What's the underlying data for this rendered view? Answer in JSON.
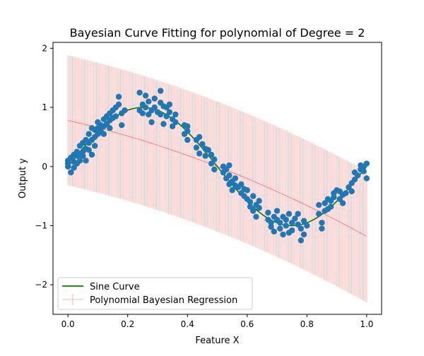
{
  "chart_data": {
    "type": "scatter",
    "title": "Bayesian Curve Fitting for polynomial of Degree = 2",
    "xlabel": "Feature X",
    "ylabel": "Output y",
    "xlim": [
      -0.05,
      1.05
    ],
    "ylim": [
      -2.5,
      2.1
    ],
    "x_ticks": [
      0.0,
      0.2,
      0.4,
      0.6,
      0.8,
      1.0
    ],
    "x_tick_labels": [
      "0.0",
      "0.2",
      "0.4",
      "0.6",
      "0.8",
      "1.0"
    ],
    "y_ticks": [
      -2,
      -1,
      0,
      1,
      2
    ],
    "y_tick_labels": [
      "−2",
      "−1",
      "0",
      "1",
      "2"
    ],
    "grid": false,
    "legend_position": "lower left",
    "legend": [
      "Sine Curve",
      "Polynomial Bayesian Regression"
    ],
    "colors": {
      "points": "#1f77b4",
      "sine": "#008000",
      "regression": "#ff0000",
      "errorbar": "#ffb6b6"
    },
    "sine_curve": {
      "name": "Sine Curve",
      "function": "sin(2*pi*x)",
      "x_range": [
        0,
        1
      ]
    },
    "regression": {
      "name": "Polynomial Bayesian Regression",
      "degree": 2,
      "x_range": [
        0,
        1
      ],
      "mean": {
        "x": [
          0.0,
          0.5,
          1.0
        ],
        "y": [
          0.78,
          0.0,
          -1.18
        ]
      },
      "upper": {
        "x": [
          0.0,
          0.5,
          1.0
        ],
        "y": [
          1.88,
          1.1,
          -0.08
        ]
      },
      "lower": {
        "x": [
          0.0,
          0.5,
          1.0
        ],
        "y": [
          -0.32,
          -1.1,
          -2.3
        ]
      }
    },
    "scatter": {
      "name": "data points",
      "points": [
        [
          0.0,
          0.0
        ],
        [
          0.0,
          0.05
        ],
        [
          0.0,
          0.1
        ],
        [
          0.01,
          -0.1
        ],
        [
          0.01,
          0.15
        ],
        [
          0.02,
          0.08
        ],
        [
          0.02,
          0.2
        ],
        [
          0.02,
          -0.02
        ],
        [
          0.03,
          0.18
        ],
        [
          0.03,
          0.25
        ],
        [
          0.03,
          0.05
        ],
        [
          0.04,
          0.2
        ],
        [
          0.04,
          0.1
        ],
        [
          0.04,
          0.35
        ],
        [
          0.05,
          0.25
        ],
        [
          0.05,
          0.4
        ],
        [
          0.05,
          0.18
        ],
        [
          0.06,
          0.3
        ],
        [
          0.06,
          0.45
        ],
        [
          0.06,
          0.1
        ],
        [
          0.07,
          0.55
        ],
        [
          0.07,
          0.4
        ],
        [
          0.07,
          0.28
        ],
        [
          0.08,
          0.65
        ],
        [
          0.08,
          0.45
        ],
        [
          0.08,
          0.2
        ],
        [
          0.09,
          0.5
        ],
        [
          0.09,
          0.62
        ],
        [
          0.09,
          0.35
        ],
        [
          0.1,
          0.55
        ],
        [
          0.1,
          0.75
        ],
        [
          0.1,
          0.65
        ],
        [
          0.11,
          0.7
        ],
        [
          0.11,
          0.6
        ],
        [
          0.12,
          0.8
        ],
        [
          0.12,
          0.68
        ],
        [
          0.12,
          0.55
        ],
        [
          0.13,
          0.85
        ],
        [
          0.13,
          0.72
        ],
        [
          0.14,
          0.9
        ],
        [
          0.14,
          0.65
        ],
        [
          0.14,
          0.78
        ],
        [
          0.15,
          0.95
        ],
        [
          0.15,
          0.82
        ],
        [
          0.16,
          0.85
        ],
        [
          0.16,
          1.0
        ],
        [
          0.17,
          1.18
        ],
        [
          0.17,
          1.05
        ],
        [
          0.18,
          0.9
        ],
        [
          0.18,
          0.7
        ],
        [
          0.19,
          0.95
        ],
        [
          0.24,
          1.25
        ],
        [
          0.24,
          0.95
        ],
        [
          0.25,
          1.05
        ],
        [
          0.25,
          0.9
        ],
        [
          0.26,
          1.2
        ],
        [
          0.26,
          1.0
        ],
        [
          0.27,
          0.88
        ],
        [
          0.27,
          1.1
        ],
        [
          0.28,
          0.95
        ],
        [
          0.28,
          0.75
        ],
        [
          0.29,
          1.15
        ],
        [
          0.29,
          1.0
        ],
        [
          0.3,
          0.92
        ],
        [
          0.31,
          1.28
        ],
        [
          0.31,
          1.08
        ],
        [
          0.31,
          0.88
        ],
        [
          0.32,
          1.02
        ],
        [
          0.32,
          0.72
        ],
        [
          0.33,
          1.0
        ],
        [
          0.33,
          0.85
        ],
        [
          0.34,
          0.92
        ],
        [
          0.34,
          1.05
        ],
        [
          0.35,
          0.8
        ],
        [
          0.35,
          0.68
        ],
        [
          0.36,
          0.88
        ],
        [
          0.36,
          0.75
        ],
        [
          0.39,
          0.7
        ],
        [
          0.39,
          0.55
        ],
        [
          0.4,
          0.6
        ],
        [
          0.4,
          0.45
        ],
        [
          0.4,
          0.68
        ],
        [
          0.43,
          0.45
        ],
        [
          0.43,
          0.32
        ],
        [
          0.44,
          0.5
        ],
        [
          0.44,
          0.22
        ],
        [
          0.45,
          0.38
        ],
        [
          0.46,
          0.3
        ],
        [
          0.46,
          0.18
        ],
        [
          0.47,
          0.28
        ],
        [
          0.48,
          0.05
        ],
        [
          0.48,
          0.2
        ],
        [
          0.49,
          -0.05
        ],
        [
          0.49,
          0.12
        ],
        [
          0.52,
          0.0
        ],
        [
          0.52,
          -0.1
        ],
        [
          0.53,
          -0.2
        ],
        [
          0.53,
          -0.05
        ],
        [
          0.54,
          -0.3
        ],
        [
          0.54,
          -0.15
        ],
        [
          0.54,
          0.02
        ],
        [
          0.55,
          -0.25
        ],
        [
          0.55,
          -0.4
        ],
        [
          0.56,
          -0.32
        ],
        [
          0.56,
          -0.2
        ],
        [
          0.57,
          -0.35
        ],
        [
          0.58,
          -0.45
        ],
        [
          0.58,
          -0.3
        ],
        [
          0.59,
          -0.5
        ],
        [
          0.59,
          -0.38
        ],
        [
          0.6,
          -0.55
        ],
        [
          0.6,
          -0.4
        ],
        [
          0.61,
          -0.6
        ],
        [
          0.61,
          -0.68
        ],
        [
          0.62,
          -0.5
        ],
        [
          0.62,
          -0.75
        ],
        [
          0.63,
          -0.65
        ],
        [
          0.63,
          -0.85
        ],
        [
          0.64,
          -0.7
        ],
        [
          0.64,
          -0.58
        ],
        [
          0.67,
          -0.9
        ],
        [
          0.67,
          -0.78
        ],
        [
          0.68,
          -0.95
        ],
        [
          0.68,
          -1.02
        ],
        [
          0.69,
          -0.85
        ],
        [
          0.69,
          -1.1
        ],
        [
          0.7,
          -0.9
        ],
        [
          0.7,
          -0.75
        ],
        [
          0.71,
          -1.05
        ],
        [
          0.71,
          -0.95
        ],
        [
          0.72,
          -1.15
        ],
        [
          0.72,
          -0.85
        ],
        [
          0.73,
          -1.0
        ],
        [
          0.73,
          -0.9
        ],
        [
          0.74,
          -1.12
        ],
        [
          0.74,
          -0.8
        ],
        [
          0.75,
          -0.95
        ],
        [
          0.75,
          -1.08
        ],
        [
          0.76,
          -0.88
        ],
        [
          0.77,
          -0.98
        ],
        [
          0.77,
          -0.8
        ],
        [
          0.78,
          -1.05
        ],
        [
          0.78,
          -1.25
        ],
        [
          0.79,
          -1.15
        ],
        [
          0.79,
          -0.92
        ],
        [
          0.8,
          -1.0
        ],
        [
          0.84,
          -0.65
        ],
        [
          0.84,
          -0.8
        ],
        [
          0.85,
          -0.95
        ],
        [
          0.85,
          -1.05
        ],
        [
          0.86,
          -0.75
        ],
        [
          0.86,
          -0.62
        ],
        [
          0.87,
          -0.55
        ],
        [
          0.87,
          -0.72
        ],
        [
          0.88,
          -0.58
        ],
        [
          0.88,
          -0.68
        ],
        [
          0.89,
          -0.45
        ],
        [
          0.89,
          -0.52
        ],
        [
          0.9,
          -0.4
        ],
        [
          0.91,
          -0.55
        ],
        [
          0.91,
          -0.42
        ],
        [
          0.92,
          -0.62
        ],
        [
          0.92,
          -0.48
        ],
        [
          0.93,
          -0.45
        ],
        [
          0.94,
          -0.35
        ],
        [
          0.95,
          -0.28
        ],
        [
          0.95,
          -0.42
        ],
        [
          0.96,
          -0.22
        ],
        [
          0.96,
          -0.1
        ],
        [
          0.97,
          -0.15
        ],
        [
          0.98,
          -0.05
        ],
        [
          0.98,
          0.02
        ],
        [
          0.99,
          0.0
        ],
        [
          0.99,
          -0.08
        ],
        [
          1.0,
          0.05
        ],
        [
          1.0,
          -0.2
        ]
      ]
    }
  }
}
